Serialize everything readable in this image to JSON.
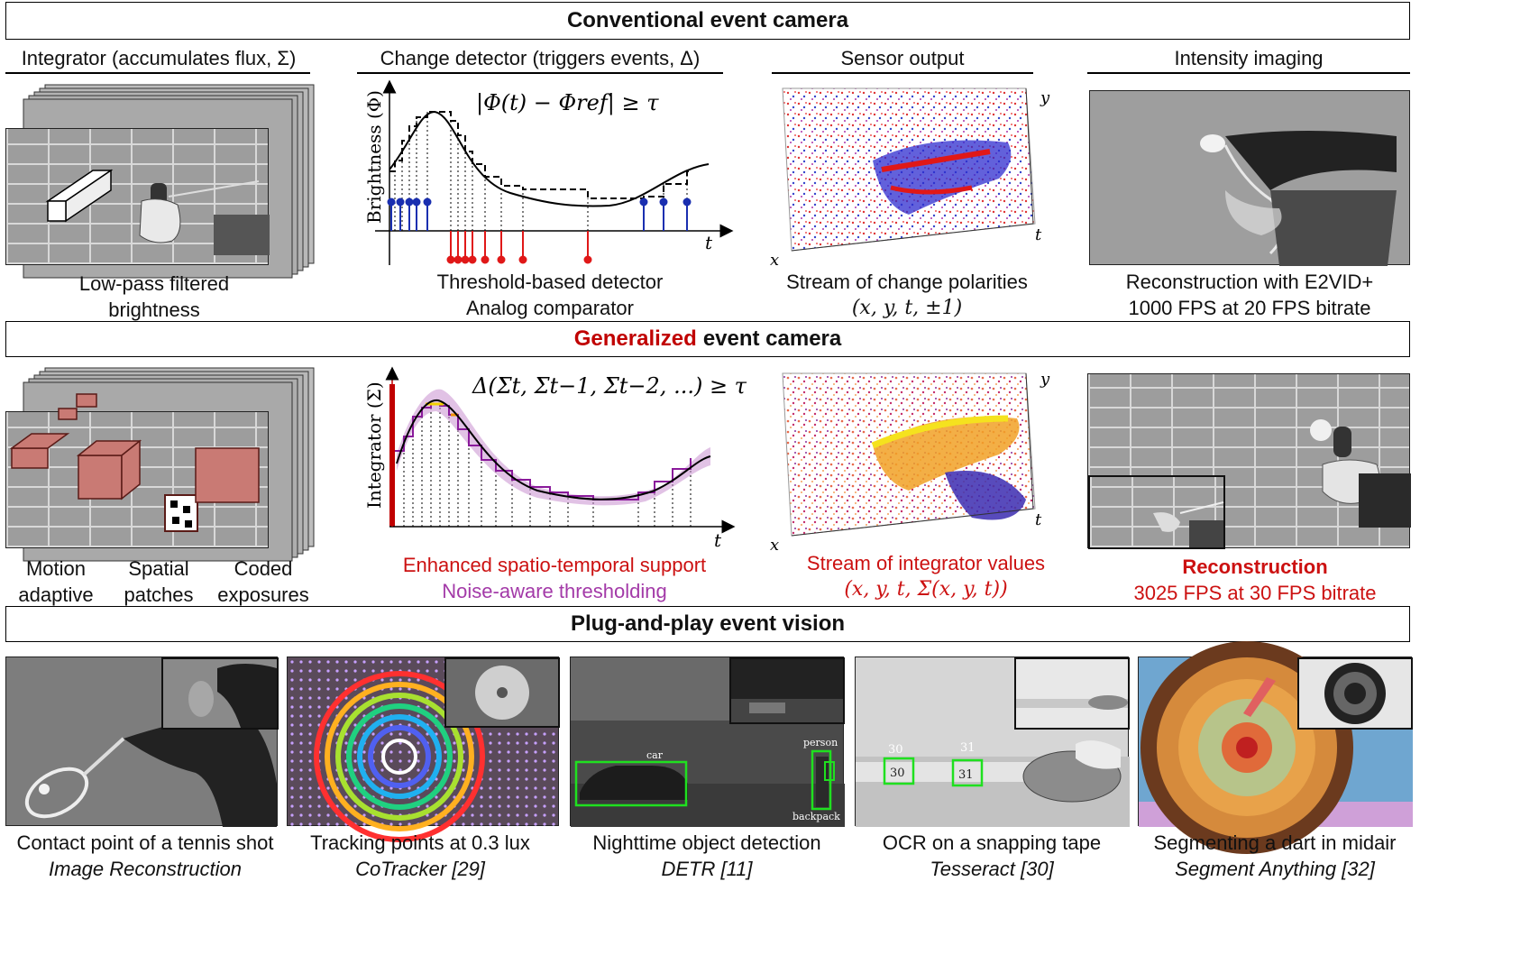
{
  "banners": {
    "conventional": "Conventional event camera",
    "generalized_accent": "Generalized",
    "generalized_rest": "event camera",
    "plug_and_play": "Plug-and-play event vision"
  },
  "columns": {
    "integrator": "Integrator (accumulates flux, Σ)",
    "change_detector": "Change detector (triggers events, Δ)",
    "sensor_output": "Sensor output",
    "intensity_imaging": "Intensity imaging"
  },
  "row1": {
    "integrator_caption_1": "Low-pass filtered",
    "integrator_caption_2": "brightness",
    "equation": "|Φ(t) − Φref| ≥ τ",
    "y_axis": "Brightness (Φ)",
    "x_axis": "t",
    "detector_caption_1": "Threshold-based detector",
    "detector_caption_2": "Analog comparator",
    "sensor_caption_1": "Stream of change polarities",
    "sensor_caption_2": "(x, y, t, ±1)",
    "axis_x": "x",
    "axis_y": "y",
    "axis_t": "t",
    "recon_caption_1": "Reconstruction with E2VID+",
    "recon_caption_2": "1000 FPS at 20 FPS bitrate"
  },
  "row2": {
    "integrator_labels": [
      "Motion\nadaptive",
      "Spatial\npatches",
      "Coded\nexposures"
    ],
    "equation": "Δ(Σt, Σt−1, Σt−2, ...) ≥ τ",
    "y_axis": "Integrator (Σ)",
    "x_axis": "t",
    "detector_caption_1": "Enhanced spatio-temporal support",
    "detector_caption_2": "Noise-aware thresholding",
    "sensor_caption_1": "Stream of integrator values",
    "sensor_caption_2": "(x, y, t, Σ(x, y, t))",
    "axis_x": "x",
    "axis_y": "y",
    "axis_t": "t",
    "recon_caption_1": "Reconstruction",
    "recon_caption_2": "3025 FPS at 30 FPS bitrate"
  },
  "row3": {
    "panels": [
      {
        "title": "Contact point of a tennis shot",
        "method": "Image Reconstruction"
      },
      {
        "title": "Tracking points at 0.3 lux",
        "method": "CoTracker [29]"
      },
      {
        "title": "Nighttime object detection",
        "method": "DETR [11]"
      },
      {
        "title": "OCR on a snapping tape",
        "method": "Tesseract [30]"
      },
      {
        "title": "Segmenting a dart in midair",
        "method": "Segment Anything [32]"
      }
    ],
    "detections": {
      "car": "car",
      "person": "person",
      "backpack": "backpack"
    },
    "ocr": {
      "a_label": "30",
      "a_text": "30",
      "b_label": "31",
      "b_text": "31"
    }
  },
  "colors": {
    "accent_red": "#c00000",
    "event_blue": "#1a2fb0",
    "event_red": "#e01818",
    "integrator_purple": "#a33aa8"
  }
}
